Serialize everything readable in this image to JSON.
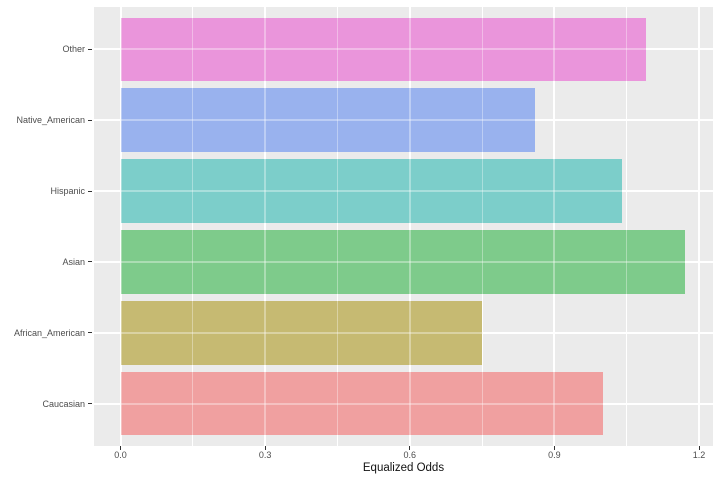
{
  "chart_data": {
    "type": "bar",
    "orientation": "horizontal",
    "title": "",
    "xlabel": "Equalized Odds",
    "ylabel": "",
    "categories": [
      "Other",
      "Native_American",
      "Hispanic",
      "Asian",
      "African_American",
      "Caucasian"
    ],
    "values": [
      1.09,
      0.86,
      1.04,
      1.17,
      0.75,
      1.0
    ],
    "bar_colors": [
      "#EA95DB",
      "#99B2EE",
      "#7CCECA",
      "#7ECB8B",
      "#C6BA72",
      "#F0A0A0"
    ],
    "x_ticks": [
      0.0,
      0.3,
      0.6,
      0.9,
      1.2
    ],
    "x_tick_labels": [
      "0.0",
      "0.3",
      "0.6",
      "0.9",
      "1.2"
    ],
    "xlim": [
      0,
      1.2
    ],
    "grid": "on",
    "legend_position": "none",
    "panel_background": "#EBEBEB",
    "gridline_color": "#FFFFFF",
    "axis_text_color": "#4D4D4D",
    "axis_title_color": "#111111"
  }
}
